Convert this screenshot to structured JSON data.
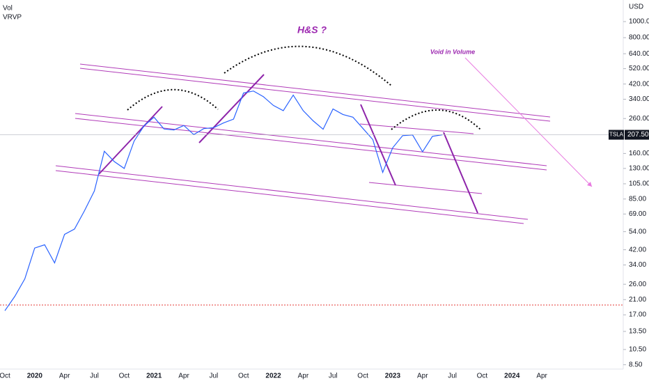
{
  "chart_data": {
    "type": "line",
    "top_left_labels": [
      "Vol",
      "VRVP"
    ],
    "currency": "USD",
    "annotations": [
      "H&S ?",
      "Void in Volume"
    ],
    "symbol": "TSLA",
    "price_tag": {
      "value": 207.5,
      "label": "207.50"
    },
    "log_scale": true,
    "color": "#2962ff",
    "categories": [
      "Oct",
      null,
      null,
      "2020",
      null,
      null,
      "Apr",
      null,
      null,
      "Jul",
      null,
      null,
      "Oct",
      null,
      null,
      "2021",
      null,
      null,
      "Apr",
      null,
      null,
      "Jul",
      null,
      null,
      "Oct",
      null,
      null,
      "2022",
      null,
      null,
      "Apr",
      null,
      null,
      "Jul",
      null,
      null,
      "Oct",
      null,
      null,
      "2023",
      null,
      null,
      "Apr",
      null,
      null,
      "Jul",
      null,
      null,
      "Oct",
      null,
      null,
      "2024",
      null,
      null,
      "Apr"
    ],
    "values": [
      18,
      22,
      28,
      43,
      45,
      35,
      52,
      56,
      72,
      95,
      165,
      143,
      130,
      190,
      235,
      265,
      225,
      222,
      236,
      208,
      226,
      229,
      245,
      258,
      371,
      381,
      352,
      312,
      290,
      360,
      290,
      252,
      224,
      297,
      275,
      265,
      227,
      194,
      123,
      173,
      205,
      207,
      164,
      203,
      207.5,
      null,
      null,
      null,
      null,
      null,
      null,
      null,
      null,
      null,
      null
    ],
    "ylim": [
      8.0,
      1350
    ],
    "yticks": [
      {
        "value": 1000,
        "label": "1000.00"
      },
      {
        "value": 800,
        "label": "800.00"
      },
      {
        "value": 640,
        "label": "640.00"
      },
      {
        "value": 520,
        "label": "520.00"
      },
      {
        "value": 420,
        "label": "420.00"
      },
      {
        "value": 340,
        "label": "340.00"
      },
      {
        "value": 260,
        "label": "260.00"
      },
      {
        "value": 160,
        "label": "160.00"
      },
      {
        "value": 130,
        "label": "130.00"
      },
      {
        "value": 105,
        "label": "105.00"
      },
      {
        "value": 85,
        "label": "85.00"
      },
      {
        "value": 69,
        "label": "69.00"
      },
      {
        "value": 54,
        "label": "54.00"
      },
      {
        "value": 42,
        "label": "42.00"
      },
      {
        "value": 34,
        "label": "34.00"
      },
      {
        "value": 26,
        "label": "26.00"
      },
      {
        "value": 21,
        "label": "21.00"
      },
      {
        "value": 17,
        "label": "17.00"
      },
      {
        "value": 13.5,
        "label": "13.50"
      },
      {
        "value": 10.5,
        "label": "10.50"
      },
      {
        "value": 8.5,
        "label": "8.50"
      }
    ]
  }
}
